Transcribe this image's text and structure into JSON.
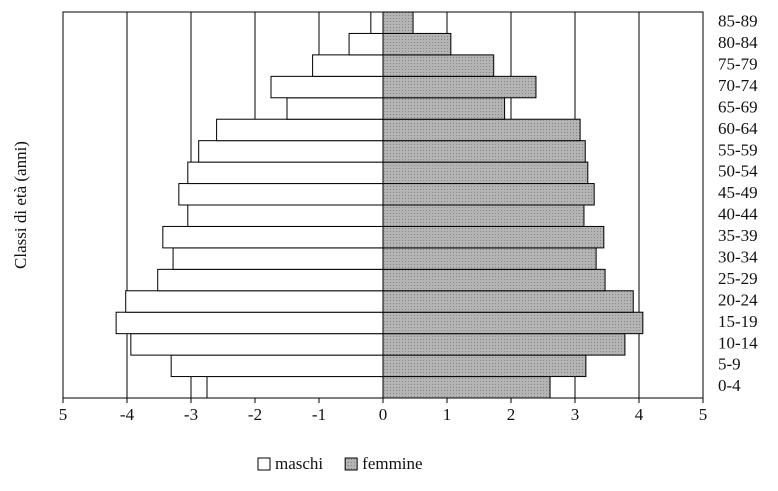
{
  "chart_data": {
    "type": "bar",
    "orientation": "horizontal",
    "y_label": "Classi di età (anni)",
    "categories": [
      "0-4",
      "5-9",
      "10-14",
      "15-19",
      "20-24",
      "25-29",
      "30-34",
      "35-39",
      "40-44",
      "45-49",
      "50-54",
      "55-59",
      "60-64",
      "65-69",
      "70-74",
      "75-79",
      "80-84",
      "85-89"
    ],
    "series": [
      {
        "name": "maschi",
        "color": "#ffffff",
        "values": [
          -2.75,
          -3.31,
          -3.94,
          -4.17,
          -4.02,
          -3.52,
          -3.28,
          -3.44,
          -3.05,
          -3.19,
          -3.05,
          -2.88,
          -2.6,
          -1.5,
          -1.75,
          -1.1,
          -0.53,
          -0.19
        ]
      },
      {
        "name": "femmine",
        "color": "#b4b4b4",
        "values": [
          2.61,
          3.17,
          3.78,
          4.06,
          3.91,
          3.47,
          3.33,
          3.45,
          3.14,
          3.3,
          3.2,
          3.16,
          3.08,
          1.9,
          2.39,
          1.73,
          1.06,
          0.47
        ]
      }
    ],
    "xlim": [
      -5,
      5
    ],
    "xticks": [
      {
        "value": -5,
        "label": "5"
      },
      -4,
      -3,
      -2,
      -1,
      0,
      1,
      2,
      3,
      4,
      5
    ],
    "grid": true
  }
}
